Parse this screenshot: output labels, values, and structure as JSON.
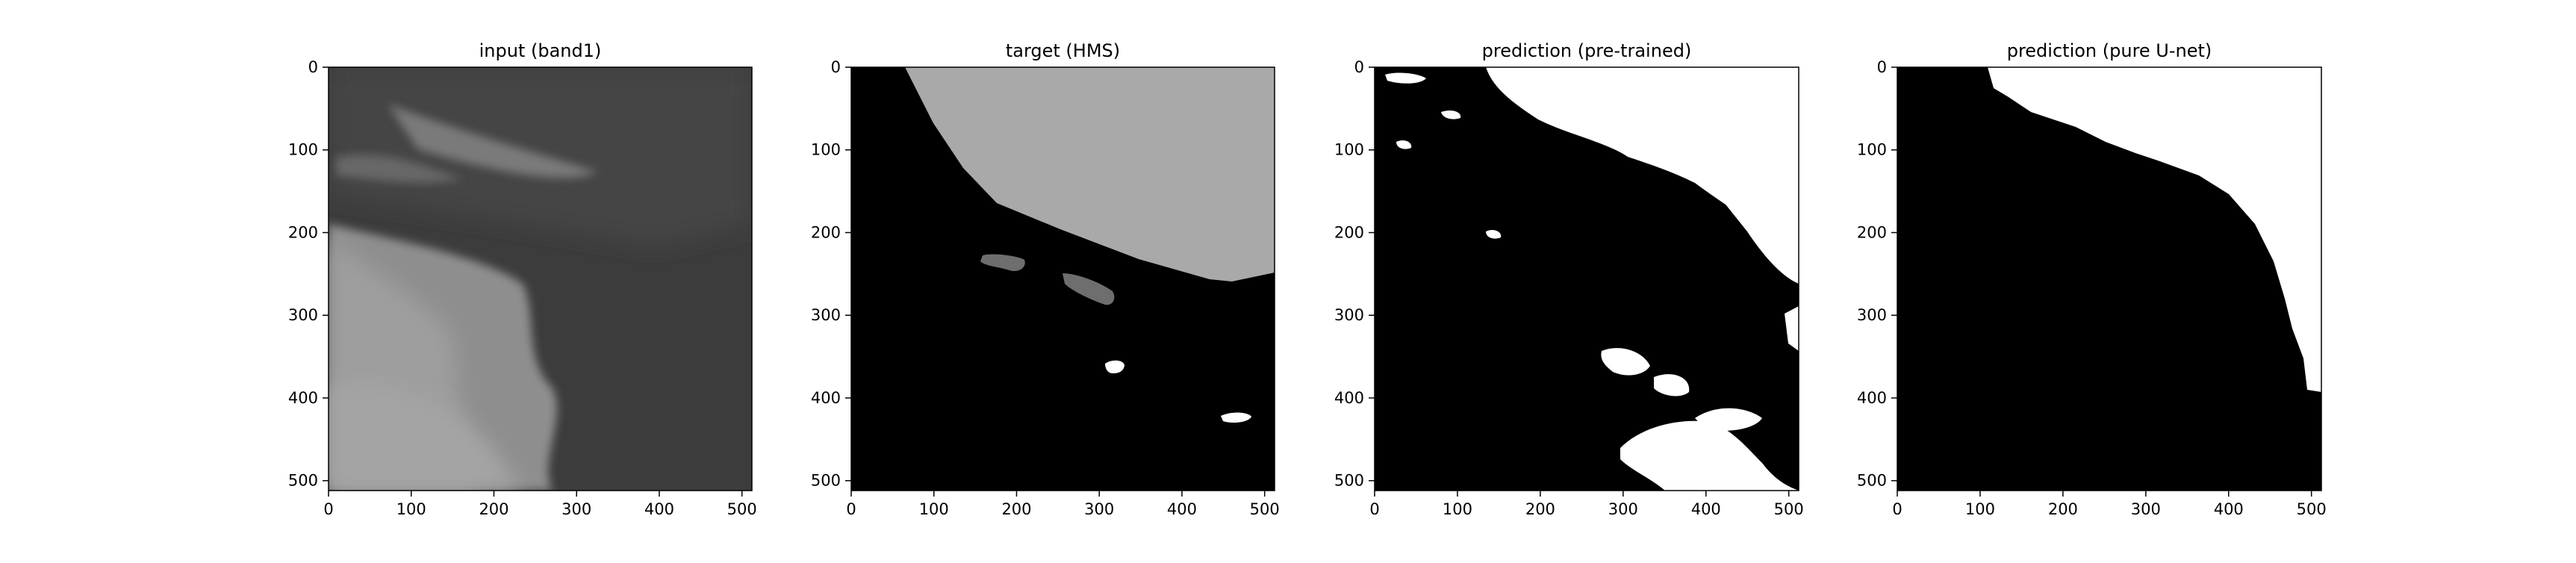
{
  "chart_data": [
    {
      "type": "heatmap",
      "title": "input (band1)",
      "xlim": [
        0,
        512
      ],
      "ylim": [
        512,
        0
      ],
      "xticks": [
        0,
        100,
        200,
        300,
        400,
        500
      ],
      "yticks": [
        0,
        100,
        200,
        300,
        400,
        500
      ],
      "xtick_labels": [
        "0",
        "100",
        "200",
        "300",
        "400",
        "500"
      ],
      "ytick_labels": [
        "0",
        "100",
        "200",
        "300",
        "400",
        "500"
      ],
      "colormap": "gray",
      "grid": false
    },
    {
      "type": "heatmap",
      "title": "target (HMS)",
      "xlim": [
        0,
        512
      ],
      "ylim": [
        512,
        0
      ],
      "xticks": [
        0,
        100,
        200,
        300,
        400,
        500
      ],
      "yticks": [
        0,
        100,
        200,
        300,
        400,
        500
      ],
      "xtick_labels": [
        "0",
        "100",
        "200",
        "300",
        "400",
        "500"
      ],
      "ytick_labels": [
        "0",
        "100",
        "200",
        "300",
        "400",
        "500"
      ],
      "colormap": "gray",
      "grid": false
    },
    {
      "type": "heatmap",
      "title": "prediction (pre-trained)",
      "xlim": [
        0,
        512
      ],
      "ylim": [
        512,
        0
      ],
      "xticks": [
        0,
        100,
        200,
        300,
        400,
        500
      ],
      "yticks": [
        0,
        100,
        200,
        300,
        400,
        500
      ],
      "xtick_labels": [
        "0",
        "100",
        "200",
        "300",
        "400",
        "500"
      ],
      "ytick_labels": [
        "0",
        "100",
        "200",
        "300",
        "400",
        "500"
      ],
      "colormap": "gray",
      "grid": false
    },
    {
      "type": "heatmap",
      "title": "prediction (pure U-net)",
      "xlim": [
        0,
        512
      ],
      "ylim": [
        512,
        0
      ],
      "xticks": [
        0,
        100,
        200,
        300,
        400,
        500
      ],
      "yticks": [
        0,
        100,
        200,
        300,
        400,
        500
      ],
      "xtick_labels": [
        "0",
        "100",
        "200",
        "300",
        "400",
        "500"
      ],
      "ytick_labels": [
        "0",
        "100",
        "200",
        "300",
        "400",
        "500"
      ],
      "colormap": "gray",
      "grid": false
    }
  ],
  "colors": {
    "background": "#ffffff",
    "mask_black": "#000000",
    "mask_white": "#ffffff",
    "smoke_gray": "#a9a9a9",
    "light_smoke_gray": "#6e6e6e",
    "input_dark": "#3d3d3d",
    "input_cloud": "#8c8c8c"
  }
}
